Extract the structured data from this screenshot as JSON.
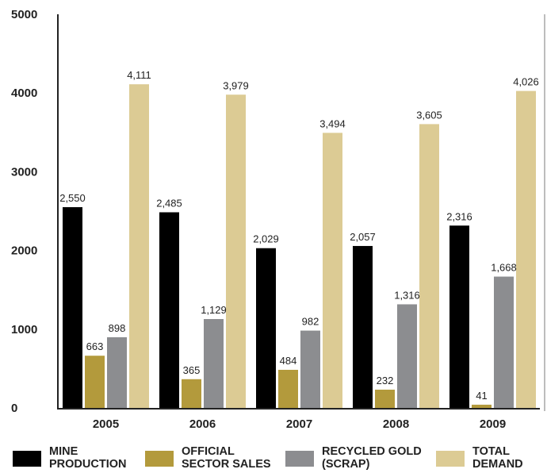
{
  "chart_data": {
    "type": "bar",
    "categories": [
      "2005",
      "2006",
      "2007",
      "2008",
      "2009"
    ],
    "series": [
      {
        "name": "MINE PRODUCTION",
        "color": "#000000",
        "values": [
          2550,
          2485,
          2029,
          2057,
          2316
        ],
        "labels": [
          "2,550",
          "2,485",
          "2,029",
          "2,057",
          "2,316"
        ]
      },
      {
        "name": "OFFICIAL SECTOR SALES",
        "color": "#b39a3c",
        "values": [
          663,
          365,
          484,
          232,
          41
        ],
        "labels": [
          "663",
          "365",
          "484",
          "232",
          "41"
        ]
      },
      {
        "name": "RECYCLED GOLD (SCRAP)",
        "color": "#8c8d90",
        "values": [
          898,
          1129,
          982,
          1316,
          1668
        ],
        "labels": [
          "898",
          "1,129",
          "982",
          "1,316",
          "1,668"
        ]
      },
      {
        "name": "TOTAL DEMAND",
        "color": "#dccb94",
        "values": [
          4111,
          3979,
          3494,
          3605,
          4026
        ],
        "labels": [
          "4,111",
          "3,979",
          "3,494",
          "3,605",
          "4,026"
        ]
      }
    ],
    "yticks": [
      "0",
      "1000",
      "2000",
      "3000",
      "4000",
      "5000"
    ],
    "ylim": [
      0,
      5000
    ],
    "grid": false,
    "legend_position": "bottom"
  },
  "legend": {
    "items": [
      {
        "line1": "MINE",
        "line2": "PRODUCTION",
        "color": "#000000"
      },
      {
        "line1": "OFFICIAL",
        "line2": "SECTOR SALES",
        "color": "#b39a3c"
      },
      {
        "line1": "RECYCLED GOLD",
        "line2": "(SCRAP)",
        "color": "#8c8d90"
      },
      {
        "line1": "TOTAL",
        "line2": "DEMAND",
        "color": "#dccb94"
      }
    ]
  }
}
